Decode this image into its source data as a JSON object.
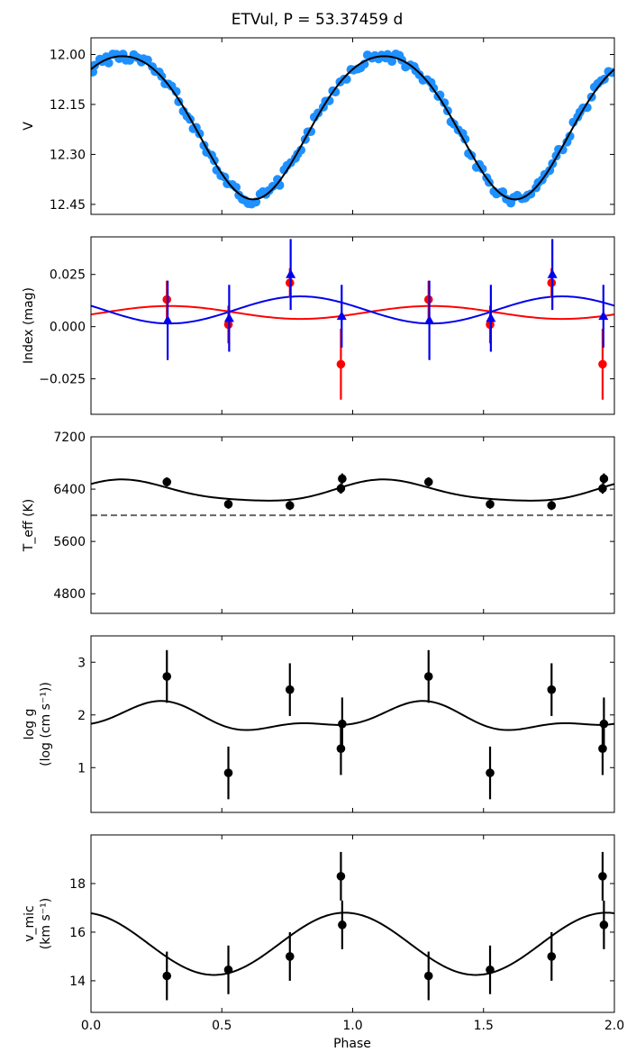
{
  "title": "ETVul, P = 53.37459 d",
  "xlabel": "Phase",
  "colors": {
    "lightcurve": "#1e90ff",
    "red": "#ff0000",
    "blue": "#0000ee",
    "black": "#000000",
    "dashed": "#666666"
  },
  "chart_data": [
    {
      "id": "V",
      "type": "scatter",
      "title": "ETVul, P = 53.37459 d",
      "ylabel": "V",
      "ylabel_lines": [
        "V"
      ],
      "xlim": [
        0,
        2
      ],
      "ylim": [
        12.48,
        11.95
      ],
      "yticks": [
        12.0,
        12.15,
        12.3,
        12.45
      ],
      "ytick_labels": [
        "12.00",
        "12.15",
        "12.30",
        "12.45"
      ],
      "xticks": [
        0,
        0.5,
        1.0,
        1.5,
        2.0
      ],
      "fit": {
        "mean": 12.2,
        "a1": 0.215,
        "p1": 0.62,
        "a2": 0.02,
        "p2": 0.12
      },
      "scatter_noise": 0.015
    },
    {
      "id": "index",
      "type": "scatter",
      "ylabel": "Index (mag)",
      "ylabel_lines": [
        "Index (mag)"
      ],
      "xlim": [
        0,
        2
      ],
      "ylim": [
        -0.042,
        0.043
      ],
      "yticks": [
        0.025,
        0.0,
        -0.025
      ],
      "ytick_labels": [
        "0.025",
        "0.000",
        "−0.025"
      ],
      "xticks": [
        0,
        0.5,
        1.0,
        1.5,
        2.0
      ],
      "series": [
        {
          "name": "red index",
          "color": "#ff0000",
          "marker": "circle",
          "x": [
            0.29,
            0.525,
            0.76,
            0.955,
            1.29,
            1.525,
            1.76,
            1.955
          ],
          "y": [
            0.013,
            0.001,
            0.021,
            -0.018,
            0.013,
            0.001,
            0.021,
            -0.018
          ],
          "err": [
            0.009,
            0.009,
            0.007,
            0.017,
            0.009,
            0.009,
            0.007,
            0.017
          ],
          "fit": {
            "mean": 0.0068,
            "a1": 0.0031,
            "p1": 0.3
          }
        },
        {
          "name": "blue index",
          "color": "#0000ee",
          "marker": "triangle",
          "x": [
            0.293,
            0.528,
            0.763,
            0.958,
            1.293,
            1.528,
            1.763,
            1.958
          ],
          "y": [
            0.003,
            0.004,
            0.025,
            0.005,
            0.003,
            0.004,
            0.025,
            0.005
          ],
          "err": [
            0.019,
            0.016,
            0.017,
            0.015,
            0.019,
            0.016,
            0.017,
            0.015
          ],
          "fit": {
            "mean": 0.008,
            "a1": 0.0065,
            "p1": 0.8
          }
        }
      ]
    },
    {
      "id": "teff",
      "type": "scatter",
      "ylabel": "T_eff (K)",
      "ylabel_lines": [
        "T_eff (K)"
      ],
      "xlim": [
        0,
        2
      ],
      "ylim": [
        4500,
        7200
      ],
      "yticks": [
        7200,
        6400,
        5600,
        4800
      ],
      "ytick_labels": [
        "7200",
        "6400",
        "5600",
        "4800"
      ],
      "xticks": [
        0,
        0.5,
        1.0,
        1.5,
        2.0
      ],
      "hline": 6000,
      "series": [
        {
          "name": "Teff",
          "color": "#000000",
          "marker": "circle",
          "x": [
            0.29,
            0.525,
            0.76,
            0.955,
            0.96,
            1.29,
            1.525,
            1.76,
            1.955,
            1.96
          ],
          "y": [
            6510,
            6170,
            6150,
            6410,
            6560,
            6510,
            6170,
            6150,
            6410,
            6560
          ],
          "err": [
            70,
            70,
            70,
            80,
            80,
            70,
            70,
            70,
            80,
            80
          ],
          "fit": {
            "mean": 6360,
            "a1": 160,
            "p1": 0.13,
            "a2": 30,
            "p2": 0.1
          }
        }
      ]
    },
    {
      "id": "logg",
      "type": "scatter",
      "ylabel": "log g (log (cm s⁻¹))",
      "ylabel_lines": [
        "log g",
        "(log (cm s⁻¹))"
      ],
      "xlim": [
        0,
        2
      ],
      "ylim": [
        0.15,
        3.5
      ],
      "yticks": [
        3,
        2,
        1
      ],
      "ytick_labels": [
        "3",
        "2",
        "1"
      ],
      "xticks": [
        0,
        0.5,
        1.0,
        1.5,
        2.0
      ],
      "series": [
        {
          "name": "log g",
          "color": "#000000",
          "marker": "circle",
          "x": [
            0.29,
            0.525,
            0.76,
            0.955,
            0.96,
            1.29,
            1.525,
            1.76,
            1.955,
            1.96
          ],
          "y": [
            2.73,
            0.9,
            2.48,
            1.36,
            1.83,
            2.73,
            0.9,
            2.48,
            1.36,
            1.83
          ],
          "err": [
            0.5,
            0.5,
            0.5,
            0.5,
            0.5,
            0.5,
            0.5,
            0.5,
            0.5,
            0.5
          ],
          "fit": {
            "mean": 1.93,
            "a1": 0.22,
            "p1": 0.24,
            "a2": 0.12,
            "p2": 0.78
          }
        }
      ]
    },
    {
      "id": "vmic",
      "type": "scatter",
      "ylabel": "v_mic (km s⁻¹)",
      "ylabel_lines": [
        "v_mic",
        "(km s⁻¹)"
      ],
      "xlim": [
        0,
        2
      ],
      "ylim": [
        12.7,
        20.0
      ],
      "yticks": [
        18,
        16,
        14
      ],
      "ytick_labels": [
        "18",
        "16",
        "14"
      ],
      "xticks": [
        0,
        0.5,
        1.0,
        1.5,
        2.0
      ],
      "xtick_labels": [
        "0.0",
        "0.5",
        "1.0",
        "1.5",
        "2.0"
      ],
      "series": [
        {
          "name": "vmic",
          "color": "#000000",
          "marker": "circle",
          "x": [
            0.29,
            0.525,
            0.76,
            0.955,
            0.96,
            1.29,
            1.525,
            1.76,
            1.955,
            1.96
          ],
          "y": [
            14.2,
            14.45,
            15.0,
            18.3,
            16.3,
            14.2,
            14.45,
            15.0,
            18.3,
            16.3
          ],
          "err": [
            1.0,
            1.0,
            1.0,
            1.0,
            1.0,
            1.0,
            1.0,
            1.0,
            1.0,
            1.0
          ],
          "fit": {
            "mean": 15.52,
            "a1": 1.28,
            "p1": 0.97
          }
        }
      ]
    }
  ]
}
